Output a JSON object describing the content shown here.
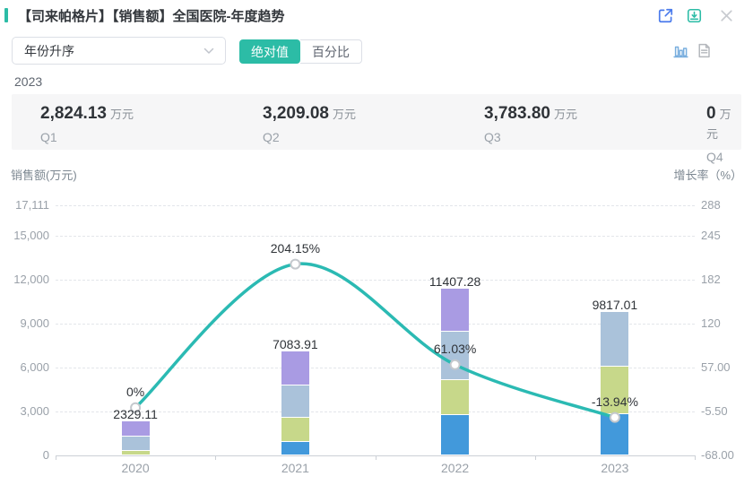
{
  "header": {
    "title": "【司来帕格片】【销售额】全国医院-年度趋势",
    "icons": [
      "external-link-icon",
      "download-icon",
      "close-icon"
    ]
  },
  "controls": {
    "sort_select": {
      "value": "年份升序"
    },
    "view_toggle": {
      "options": [
        "绝对值",
        "百分比"
      ],
      "active": "绝对值"
    },
    "toolbar_icons": [
      "bar-chart-icon",
      "document-icon"
    ]
  },
  "hovered_year": "2023",
  "quarter_panel": {
    "items": [
      {
        "label": "Q1",
        "value": "2,824.13",
        "unit": "万元"
      },
      {
        "label": "Q2",
        "value": "3,209.08",
        "unit": "万元"
      },
      {
        "label": "Q3",
        "value": "3,783.80",
        "unit": "万元"
      },
      {
        "label": "Q4",
        "value": "0",
        "unit": "万元"
      }
    ]
  },
  "chart_data": {
    "type": "bar",
    "subtype": "stacked-quarter-bars-with-growth-line",
    "categories": [
      "2020",
      "2021",
      "2022",
      "2023"
    ],
    "series": [
      {
        "name": "Q1",
        "color": "#4299db",
        "values": [
          0,
          930,
          2780,
          2824.13
        ]
      },
      {
        "name": "Q2",
        "color": "#c7d88a",
        "values": [
          330,
          1670,
          2350,
          3209.08
        ]
      },
      {
        "name": "Q3",
        "color": "#aac2da",
        "values": [
          950,
          2165,
          3340,
          3783.8
        ]
      },
      {
        "name": "Q4",
        "color": "#a99be3",
        "values": [
          1049.11,
          2318.91,
          2937.28,
          0
        ]
      }
    ],
    "segment_values_estimated_from_pixels": true,
    "totals": [
      2329.11,
      7083.91,
      11407.28,
      9817.01
    ],
    "total_labels": [
      "2329.11",
      "7083.91",
      "11407.28",
      "9817.01"
    ],
    "line": {
      "name": "增长率",
      "color": "#2bbab3",
      "values": [
        0,
        204.15,
        61.03,
        -13.94
      ],
      "labels": [
        "0%",
        "204.15%",
        "61.03%",
        "-13.94%"
      ]
    },
    "left_axis": {
      "title": "销售额(万元)",
      "ticks": [
        "17,111",
        "15,000",
        "12,000",
        "9,000",
        "6,000",
        "3,000",
        "0"
      ],
      "max": 17111,
      "min": 0
    },
    "right_axis": {
      "title": "增长率（%）",
      "ticks": [
        "288",
        "245",
        "182",
        "120",
        "57.00",
        "-5.50",
        "-68.00"
      ],
      "max": 288,
      "min": -68
    },
    "x_axis": {
      "labels": [
        "2020",
        "2021",
        "2022",
        "2023"
      ]
    },
    "grid": "horizontal-dashed",
    "legend": "none"
  },
  "colors": {
    "accent_teal": "#2cbca6",
    "line_teal": "#2bbab3",
    "panel_bg": "#f6f6f7"
  }
}
